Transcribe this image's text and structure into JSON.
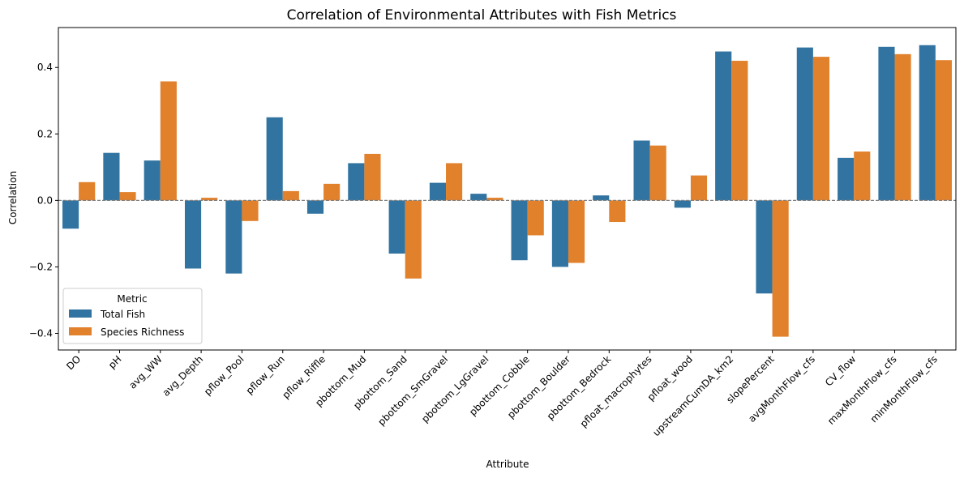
{
  "chart_data": {
    "type": "bar",
    "title": "Correlation of Environmental Attributes with Fish Metrics",
    "xlabel": "Attribute",
    "ylabel": "Correlation",
    "ylim": [
      -0.45,
      0.52
    ],
    "yticks": [
      -0.4,
      -0.2,
      0.0,
      0.2,
      0.4
    ],
    "ytick_labels": [
      "−0.4",
      "−0.2",
      "0.0",
      "0.2",
      "0.4"
    ],
    "grid": false,
    "zero_line": true,
    "legend": {
      "title": "Metric",
      "placement": "lower-left"
    },
    "categories": [
      "DO",
      "pH",
      "avg_WW",
      "avg_Depth",
      "pflow_Pool",
      "pflow_Run",
      "pflow_Riffle",
      "pbottom_Mud",
      "pbottom_Sand",
      "pbottom_SmGravel",
      "pbottom_LgGravel",
      "pbottom_Cobble",
      "pbottom_Boulder",
      "pbottom_Bedrock",
      "pfloat_macrophytes",
      "pfloat_wood",
      "upstreamCumDA_km2",
      "slopePercent",
      "avgMonthFlow_cfs",
      "CV_flow",
      "maxMonthFlow_cfs",
      "minMonthFlow_cfs"
    ],
    "series": [
      {
        "name": "Total Fish",
        "color": "#3274a1",
        "values": [
          -0.085,
          0.143,
          0.12,
          -0.205,
          -0.22,
          0.25,
          -0.04,
          0.112,
          -0.16,
          0.053,
          0.02,
          -0.18,
          -0.2,
          0.015,
          0.18,
          -0.022,
          0.448,
          -0.28,
          0.46,
          0.128,
          0.462,
          0.467
        ]
      },
      {
        "name": "Species Richness",
        "color": "#e1812c",
        "values": [
          0.055,
          0.025,
          0.358,
          0.008,
          -0.062,
          0.028,
          0.05,
          0.14,
          -0.235,
          0.112,
          0.008,
          -0.105,
          -0.188,
          -0.065,
          0.165,
          0.075,
          0.42,
          -0.41,
          0.432,
          0.147,
          0.44,
          0.422
        ]
      }
    ]
  }
}
